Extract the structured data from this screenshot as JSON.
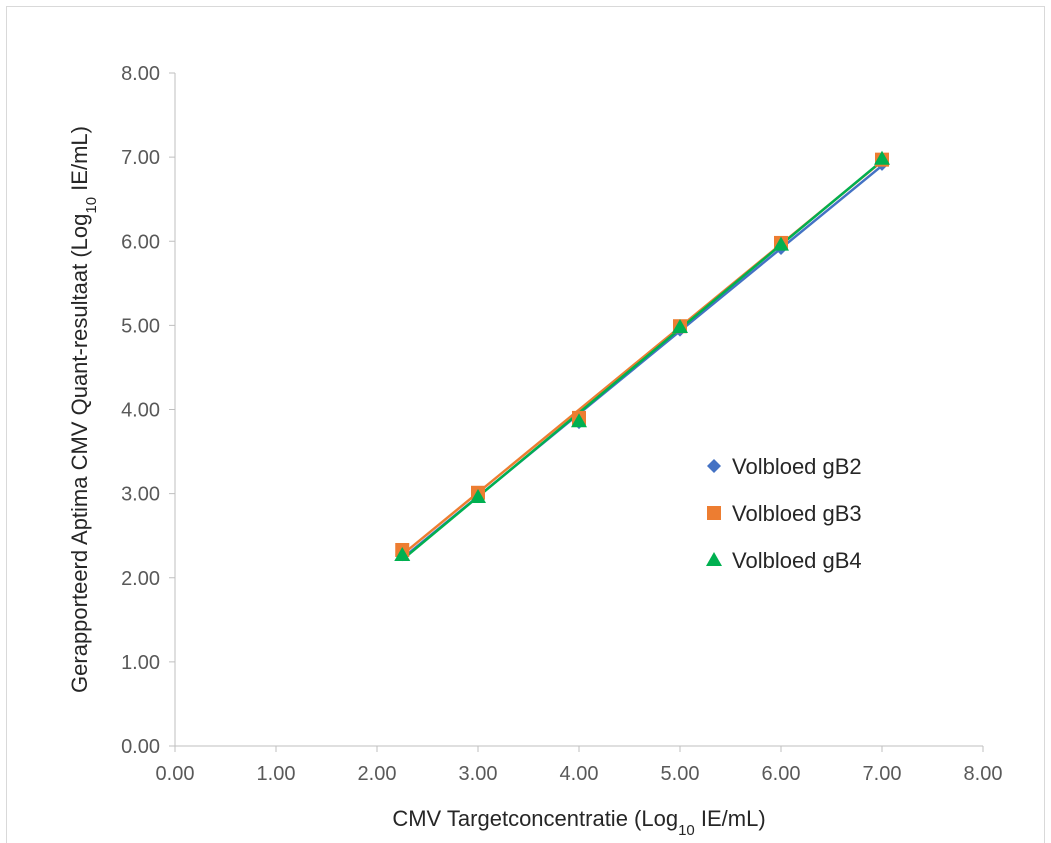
{
  "chart_data": {
    "type": "scatter",
    "title": "",
    "xlabel": {
      "prefix": "CMV Targetconcentratie (Log",
      "sub": "10",
      "suffix": " IE/mL)"
    },
    "ylabel": {
      "prefix": "Gerapporteerd Aptima CMV Quant-resultaat (Log",
      "sub": "10",
      "suffix": " IE/mL)"
    },
    "xlim": [
      0,
      8
    ],
    "ylim": [
      0,
      8
    ],
    "x_ticks": [
      "0.00",
      "1.00",
      "2.00",
      "3.00",
      "4.00",
      "5.00",
      "6.00",
      "7.00",
      "8.00"
    ],
    "y_ticks": [
      "0.00",
      "1.00",
      "2.00",
      "3.00",
      "4.00",
      "5.00",
      "6.00",
      "7.00",
      "8.00"
    ],
    "grid": false,
    "legend_position": "right",
    "series": [
      {
        "name": "Volbloed gB2",
        "marker": "diamond",
        "color": "#4472c4",
        "x": [
          2.25,
          3.0,
          4.0,
          5.0,
          6.0,
          7.0
        ],
        "y": [
          2.28,
          2.97,
          3.85,
          4.95,
          5.92,
          6.92
        ]
      },
      {
        "name": "Volbloed gB3",
        "marker": "square",
        "color": "#ed7d31",
        "x": [
          2.25,
          3.0,
          4.0,
          5.0,
          6.0,
          7.0
        ],
        "y": [
          2.33,
          3.01,
          3.9,
          4.99,
          5.98,
          6.97
        ]
      },
      {
        "name": "Volbloed gB4",
        "marker": "triangle",
        "color": "#00b050",
        "x": [
          2.25,
          3.0,
          4.0,
          5.0,
          6.0,
          7.0
        ],
        "y": [
          2.27,
          2.96,
          3.86,
          4.98,
          5.96,
          6.98
        ]
      }
    ]
  }
}
